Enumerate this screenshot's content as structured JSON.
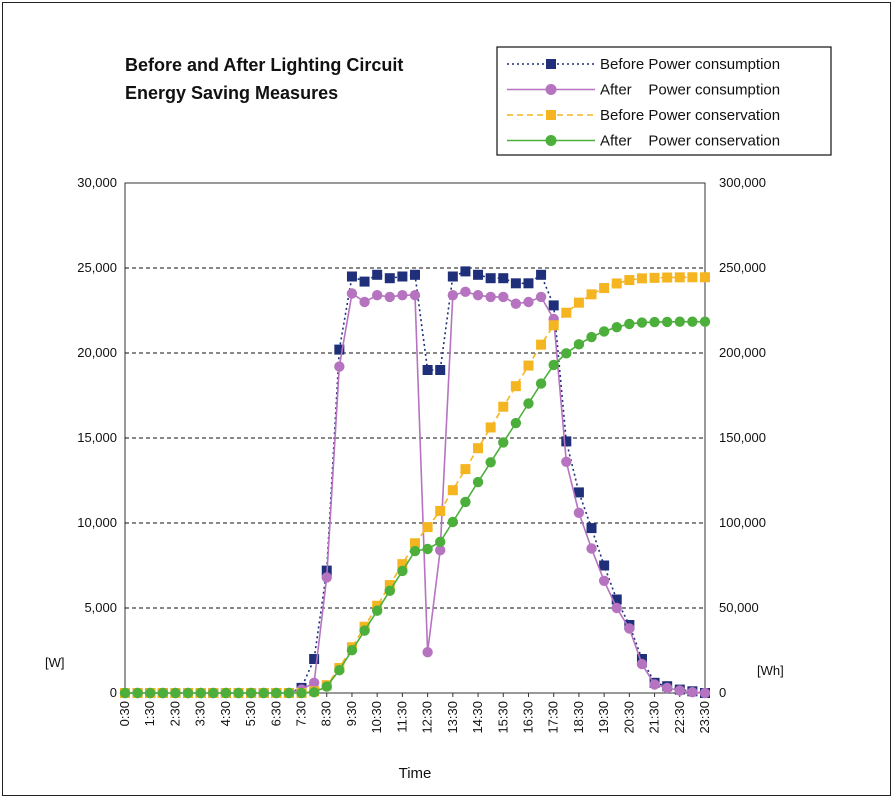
{
  "chart_data": {
    "type": "line",
    "title_lines": [
      "Before and After Lighting Circuit",
      "Energy Saving Measures"
    ],
    "xlabel": "Time",
    "y_left_unit": "[W]",
    "y_right_unit": "[Wh]",
    "y_left_range": [
      0,
      30000
    ],
    "y_right_range": [
      0,
      300000
    ],
    "y_left_ticks": [
      "0",
      "5,000",
      "10,000",
      "15,000",
      "20,000",
      "25,000",
      "30,000"
    ],
    "y_right_ticks": [
      "0",
      "50,000",
      "100,000",
      "150,000",
      "200,000",
      "250,000",
      "300,000"
    ],
    "x_tick_labels": [
      "0:30",
      "1:30",
      "2:30",
      "3:30",
      "4:30",
      "5:30",
      "6:30",
      "7:30",
      "8:30",
      "9:30",
      "10:30",
      "11:30",
      "12:30",
      "13:30",
      "14:30",
      "15:30",
      "16:30",
      "17:30",
      "18:30",
      "19:30",
      "20:30",
      "21:30",
      "22:30",
      "23:30"
    ],
    "x_hours": [
      0.5,
      1,
      1.5,
      2,
      2.5,
      3,
      3.5,
      4,
      4.5,
      5,
      5.5,
      6,
      6.5,
      7,
      7.5,
      8,
      8.5,
      9,
      9.5,
      10,
      10.5,
      11,
      11.5,
      12,
      12.5,
      13,
      13.5,
      14,
      14.5,
      15,
      15.5,
      16,
      16.5,
      17,
      17.5,
      18,
      18.5,
      19,
      19.5,
      20,
      20.5,
      21,
      21.5,
      22,
      22.5,
      23,
      23.5
    ],
    "series": [
      {
        "name": "Before Power consumption",
        "legend_label": "Before Power consumption",
        "axis": "left",
        "color": "#1f2f7a",
        "line_style": "dotted",
        "marker": "square",
        "values": [
          0,
          0,
          0,
          0,
          0,
          0,
          0,
          0,
          0,
          0,
          0,
          0,
          0,
          0,
          300,
          2000,
          7200,
          20200,
          24500,
          24200,
          24600,
          24400,
          24500,
          24600,
          19000,
          19000,
          24500,
          24800,
          24600,
          24400,
          24400,
          24100,
          24100,
          24600,
          22800,
          14800,
          11800,
          9700,
          7500,
          5500,
          4000,
          2000,
          600,
          400,
          200,
          100,
          0
        ]
      },
      {
        "name": "After Power consumption",
        "legend_label": "After    Power consumption",
        "axis": "left",
        "color": "#b673c0",
        "line_style": "solid",
        "marker": "circle",
        "values": [
          0,
          0,
          0,
          0,
          0,
          0,
          0,
          0,
          0,
          0,
          0,
          0,
          0,
          0,
          200,
          600,
          6800,
          19200,
          23500,
          23000,
          23400,
          23300,
          23400,
          23400,
          2400,
          8400,
          23400,
          23600,
          23400,
          23300,
          23300,
          22900,
          23000,
          23300,
          22000,
          13600,
          10600,
          8500,
          6600,
          5000,
          3800,
          1700,
          500,
          300,
          150,
          50,
          0
        ]
      },
      {
        "name": "Before Power conservation",
        "legend_label": "Before Power conservation",
        "axis": "right",
        "color": "#f4b520",
        "line_style": "dashed",
        "marker": "square",
        "values": [
          0,
          0,
          0,
          0,
          0,
          0,
          0,
          0,
          0,
          0,
          0,
          0,
          0,
          0,
          0,
          1000,
          4600,
          14700,
          26900,
          39000,
          51300,
          63500,
          75800,
          88100,
          97600,
          107100,
          119300,
          131700,
          144000,
          156200,
          168400,
          180500,
          192600,
          204900,
          216300,
          223700,
          229600,
          234500,
          238200,
          240900,
          242900,
          243900,
          244200,
          244400,
          244500,
          244550,
          244550
        ]
      },
      {
        "name": "After Power conservation",
        "legend_label": "After    Power conservation",
        "axis": "right",
        "color": "#4caf3c",
        "line_style": "solid",
        "marker": "circle",
        "values": [
          0,
          0,
          0,
          0,
          0,
          0,
          0,
          0,
          0,
          0,
          0,
          0,
          0,
          0,
          0,
          400,
          3800,
          13400,
          25200,
          36700,
          48400,
          60100,
          71800,
          83500,
          84700,
          88900,
          100600,
          112400,
          124100,
          135700,
          147400,
          158800,
          170300,
          182000,
          193000,
          199800,
          205100,
          209400,
          212700,
          215200,
          217100,
          217900,
          218200,
          218300,
          218400,
          218400,
          218400
        ]
      }
    ],
    "gridlines": "horizontal dashed",
    "legend_position": "top-right"
  }
}
